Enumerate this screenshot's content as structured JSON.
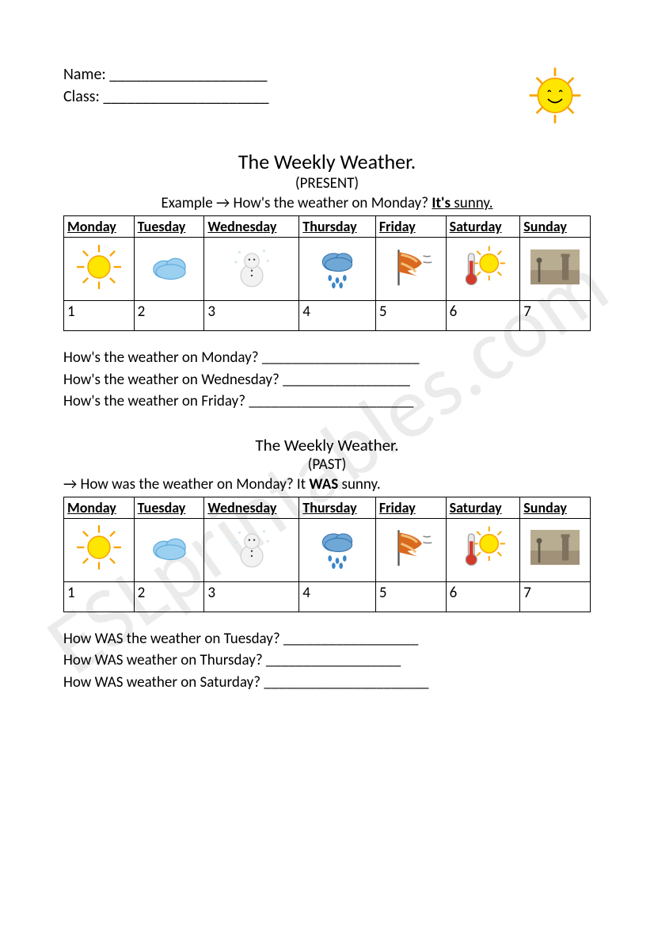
{
  "watermark": "ESLprintables.com",
  "header": {
    "name_label": "Name: ____________________",
    "class_label": "Class: _____________________"
  },
  "section_present": {
    "title": "The Weekly Weather.",
    "tense": "(PRESENT)",
    "example_prefix": "Example → How's the weather on Monday? ",
    "example_bold": "It's",
    "example_suffix": " sunny.",
    "days": [
      "Monday",
      "Tuesday",
      "Wednesday",
      "Thursday",
      "Friday",
      "Saturday",
      "Sunday"
    ],
    "icons": [
      "sun",
      "cloud",
      "snowman",
      "rain",
      "wind",
      "hot",
      "fog"
    ],
    "numbers": [
      "1",
      "2",
      "3",
      "4",
      "5",
      "6",
      "7"
    ],
    "questions": [
      "How's the weather on Monday? _____________________",
      "How's the weather on Wednesday? _________________",
      "How's the weather on Friday? ______________________"
    ]
  },
  "section_past": {
    "title": "The Weekly Weather.",
    "tense": "(PAST)",
    "example_prefix": "→ How was the weather on Monday? It ",
    "example_bold": "WAS",
    "example_suffix": " sunny.",
    "days": [
      "Monday",
      "Tuesday",
      "Wednesday",
      "Thursday",
      "Friday",
      "Saturday",
      "Sunday"
    ],
    "icons": [
      "sun",
      "cloud",
      "snowman",
      "rain",
      "wind",
      "hot",
      "fog"
    ],
    "numbers": [
      "1",
      "2",
      "3",
      "4",
      "5",
      "6",
      "7"
    ],
    "questions": [
      "How WAS the weather on Tuesday? __________________",
      "How WAS weather on Thursday? __________________",
      "How WAS weather on Saturday? ______________________"
    ]
  },
  "colors": {
    "sun_yellow": "#ffe600",
    "sun_orange": "#f7a400",
    "cloud_blue": "#9cd0f0",
    "cloud_edge": "#5ca9db",
    "rain_cloud": "#6fa8d6",
    "rain_dark": "#3d78b0",
    "rain_drop": "#3b86c9",
    "snow_white": "#f2f2f2",
    "snow_edge": "#cfcfcf",
    "wind_orange": "#d9691e",
    "wind_stripe": "#f2c07a",
    "therm_red": "#d43a2a",
    "therm_glass": "#e8e8e8",
    "fog_bg": "#8a7a5f",
    "fog_tower": "#5a4a38",
    "fog_sky": "#b0a585"
  }
}
